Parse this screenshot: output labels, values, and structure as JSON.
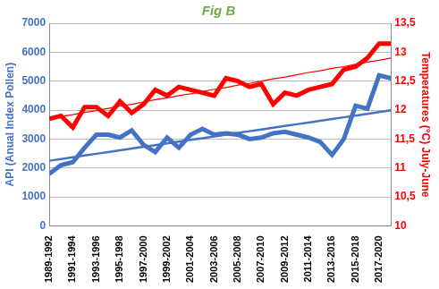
{
  "chart_data": {
    "type": "line",
    "title": "Fig B",
    "y_label": "API (Anual Index Pollen)",
    "y2_label": "Temperatures (°C) July-June",
    "categories": [
      "1989-1992",
      null,
      "1991-1994",
      null,
      "1993-1996",
      null,
      "1995-1998",
      null,
      "1997-2000",
      null,
      "1999-2002",
      null,
      "2001-2004",
      null,
      "2003-2006",
      null,
      "2005-2008",
      null,
      "2007-2010",
      null,
      "2009-2012",
      null,
      "2011-2014",
      null,
      "2013-2016",
      null,
      "2015-2018",
      null,
      "2017-2020",
      null
    ],
    "series": [
      {
        "color": "#4472c4",
        "values": [
          1800,
          2100,
          2200,
          2700,
          3150,
          3150,
          3050,
          3300,
          2800,
          2550,
          3050,
          2700,
          3150,
          3350,
          3150,
          3200,
          3150,
          3000,
          3050,
          3200,
          3250,
          3150,
          3050,
          2900,
          2450,
          3000,
          4150,
          4050,
          5200,
          5100
        ]
      },
      {
        "color": "#4472c4",
        "type": "trend",
        "values": [
          2250,
          2310,
          2370,
          2430,
          2490,
          2550,
          2610,
          2670,
          2730,
          2790,
          2850,
          2910,
          2970,
          3030,
          3090,
          3150,
          3210,
          3270,
          3330,
          3390,
          3450,
          3510,
          3570,
          3630,
          3690,
          3750,
          3810,
          3870,
          3930,
          3990
        ]
      },
      {
        "color": "#ff0000",
        "axis": "y2",
        "values": [
          11.85,
          11.9,
          11.7,
          12.05,
          12.05,
          11.9,
          12.15,
          11.95,
          12.1,
          12.35,
          12.25,
          12.4,
          12.35,
          12.3,
          12.25,
          12.55,
          12.5,
          12.4,
          12.45,
          12.1,
          12.3,
          12.25,
          12.35,
          12.4,
          12.45,
          12.7,
          12.75,
          12.9,
          13.15,
          13.15
        ]
      },
      {
        "color": "#ff0000",
        "axis": "y2",
        "type": "trend",
        "values": [
          11.85,
          11.89,
          11.92,
          11.96,
          11.99,
          12.03,
          12.07,
          12.1,
          12.14,
          12.18,
          12.21,
          12.25,
          12.28,
          12.32,
          12.36,
          12.39,
          12.43,
          12.46,
          12.5,
          12.54,
          12.57,
          12.61,
          12.65,
          12.68,
          12.72,
          12.75,
          12.79,
          12.83,
          12.86,
          12.9
        ]
      }
    ],
    "ylim": [
      0,
      7000
    ],
    "yticks": [
      0,
      1000,
      2000,
      3000,
      4000,
      5000,
      6000,
      7000
    ],
    "y2lim": [
      10,
      13.5
    ],
    "y2ticks": [
      10,
      {
        "value": 10.5,
        "label": "10,5"
      },
      11,
      {
        "value": 11.5,
        "label": "11,5"
      },
      12,
      {
        "value": 12.5,
        "label": "12,5"
      },
      13,
      {
        "value": 13.5,
        "label": "13,5"
      }
    ],
    "grid": true
  }
}
